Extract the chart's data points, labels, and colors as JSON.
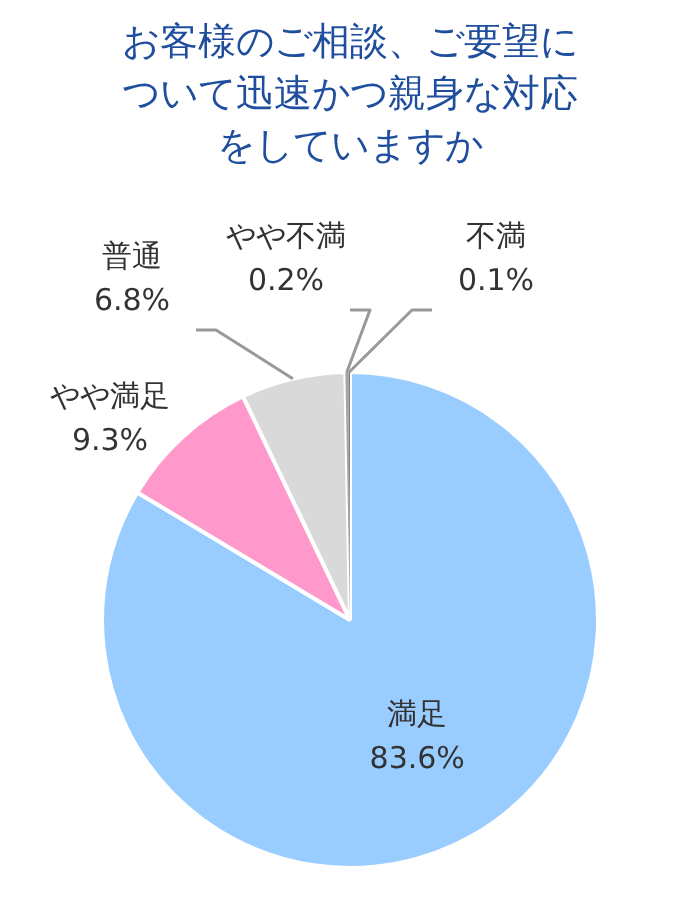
{
  "chart_data": {
    "type": "pie",
    "title": "お客様のご相談、ご要望について迅速かつ親身な対応をしていますか",
    "categories": [
      "満足",
      "やや満足",
      "普通",
      "やや不満",
      "不満"
    ],
    "values": [
      83.6,
      9.3,
      6.8,
      0.2,
      0.1
    ],
    "value_labels": [
      "83.6%",
      "9.3%",
      "6.8%",
      "0.2%",
      "0.1%"
    ],
    "colors": [
      "#99ccff",
      "#ff99cc",
      "#d9d9d9",
      "#a6a6a6",
      "#7f7f7f"
    ],
    "legend": false
  }
}
